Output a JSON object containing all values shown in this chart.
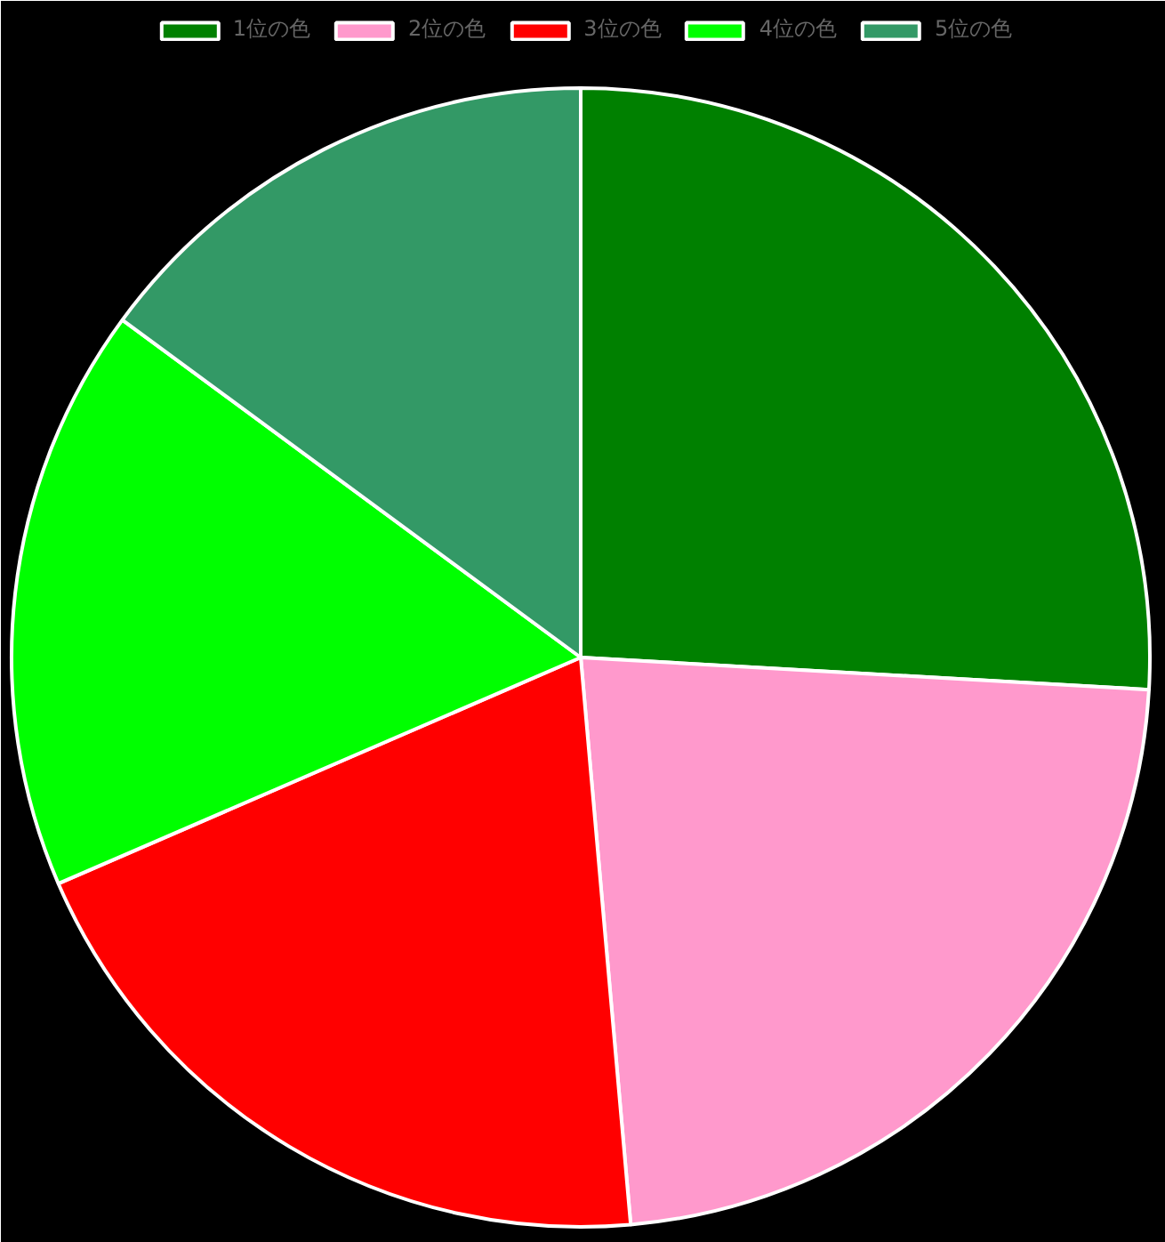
{
  "chart_data": {
    "type": "pie",
    "categories": [
      "1位の色",
      "2位の色",
      "3位の色",
      "4位の色",
      "5位の色"
    ],
    "values": [
      25.9,
      22.7,
      19.9,
      16.6,
      14.9
    ],
    "colors": [
      "#008000",
      "#ff99cc",
      "#ff0000",
      "#00ff00",
      "#339966"
    ],
    "legend": "top"
  }
}
